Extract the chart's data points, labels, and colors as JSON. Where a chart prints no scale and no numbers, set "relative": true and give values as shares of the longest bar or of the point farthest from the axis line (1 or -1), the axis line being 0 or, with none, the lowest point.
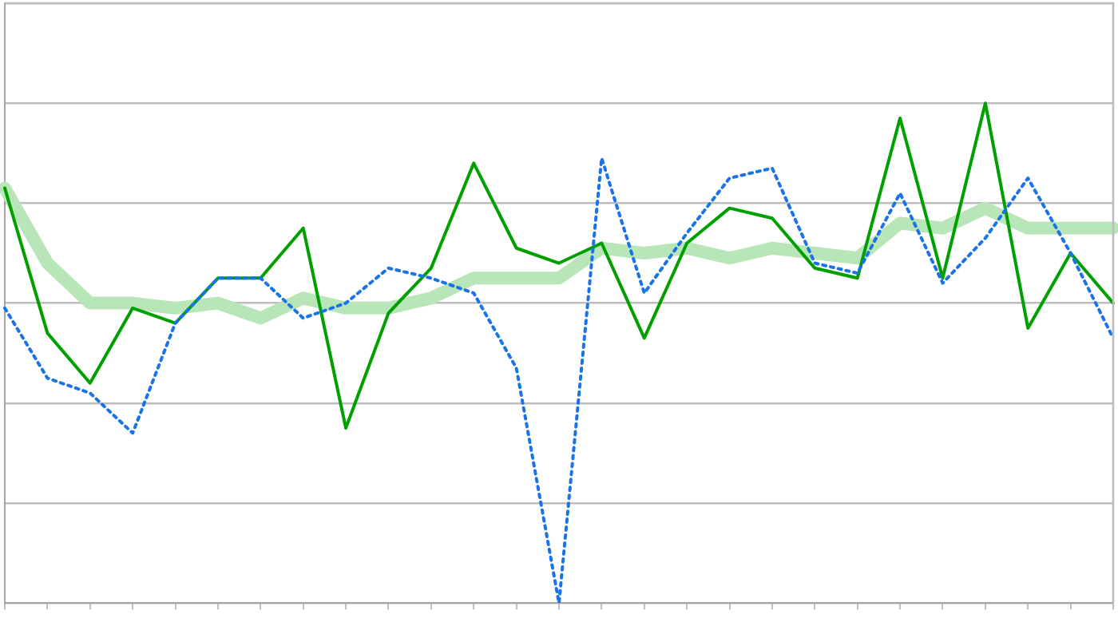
{
  "chart_data": {
    "type": "line",
    "relative": true,
    "grid": "y",
    "legend": false,
    "marker": "none",
    "categories": [
      null,
      null,
      null,
      null,
      null,
      null,
      null,
      null,
      null,
      null,
      null,
      null,
      null,
      null,
      null,
      null,
      null,
      null,
      null,
      null,
      null,
      null,
      null,
      null,
      null,
      null,
      null
    ],
    "series": [
      {
        "color": "#b9e6b9",
        "line_style": "solid",
        "values": [
          0.83,
          0.68,
          0.6,
          0.6,
          0.59,
          0.6,
          0.57,
          0.61,
          0.59,
          0.59,
          0.61,
          0.65,
          0.65,
          0.65,
          0.71,
          0.7,
          0.71,
          0.69,
          0.71,
          0.7,
          0.69,
          0.76,
          0.75,
          0.79,
          0.75,
          0.75,
          0.75
        ]
      },
      {
        "color": "#00a000",
        "line_style": "solid",
        "values": [
          0.83,
          0.54,
          0.44,
          0.59,
          0.56,
          0.65,
          0.65,
          0.75,
          0.35,
          0.58,
          0.67,
          0.88,
          0.71,
          0.68,
          0.72,
          0.53,
          0.72,
          0.79,
          0.77,
          0.67,
          0.65,
          0.97,
          0.65,
          1,
          0.55,
          0.7,
          0.6
        ]
      },
      {
        "color": "#1a73e8",
        "line_style": "dotted",
        "values": [
          0.59,
          0.45,
          0.42,
          0.34,
          0.56,
          0.65,
          0.65,
          0.57,
          0.6,
          0.67,
          0.65,
          0.62,
          0.47,
          0,
          0.89,
          0.62,
          0.74,
          0.85,
          0.87,
          0.68,
          0.66,
          0.82,
          0.64,
          0.73,
          0.85,
          0.7,
          0.53
        ]
      }
    ]
  }
}
